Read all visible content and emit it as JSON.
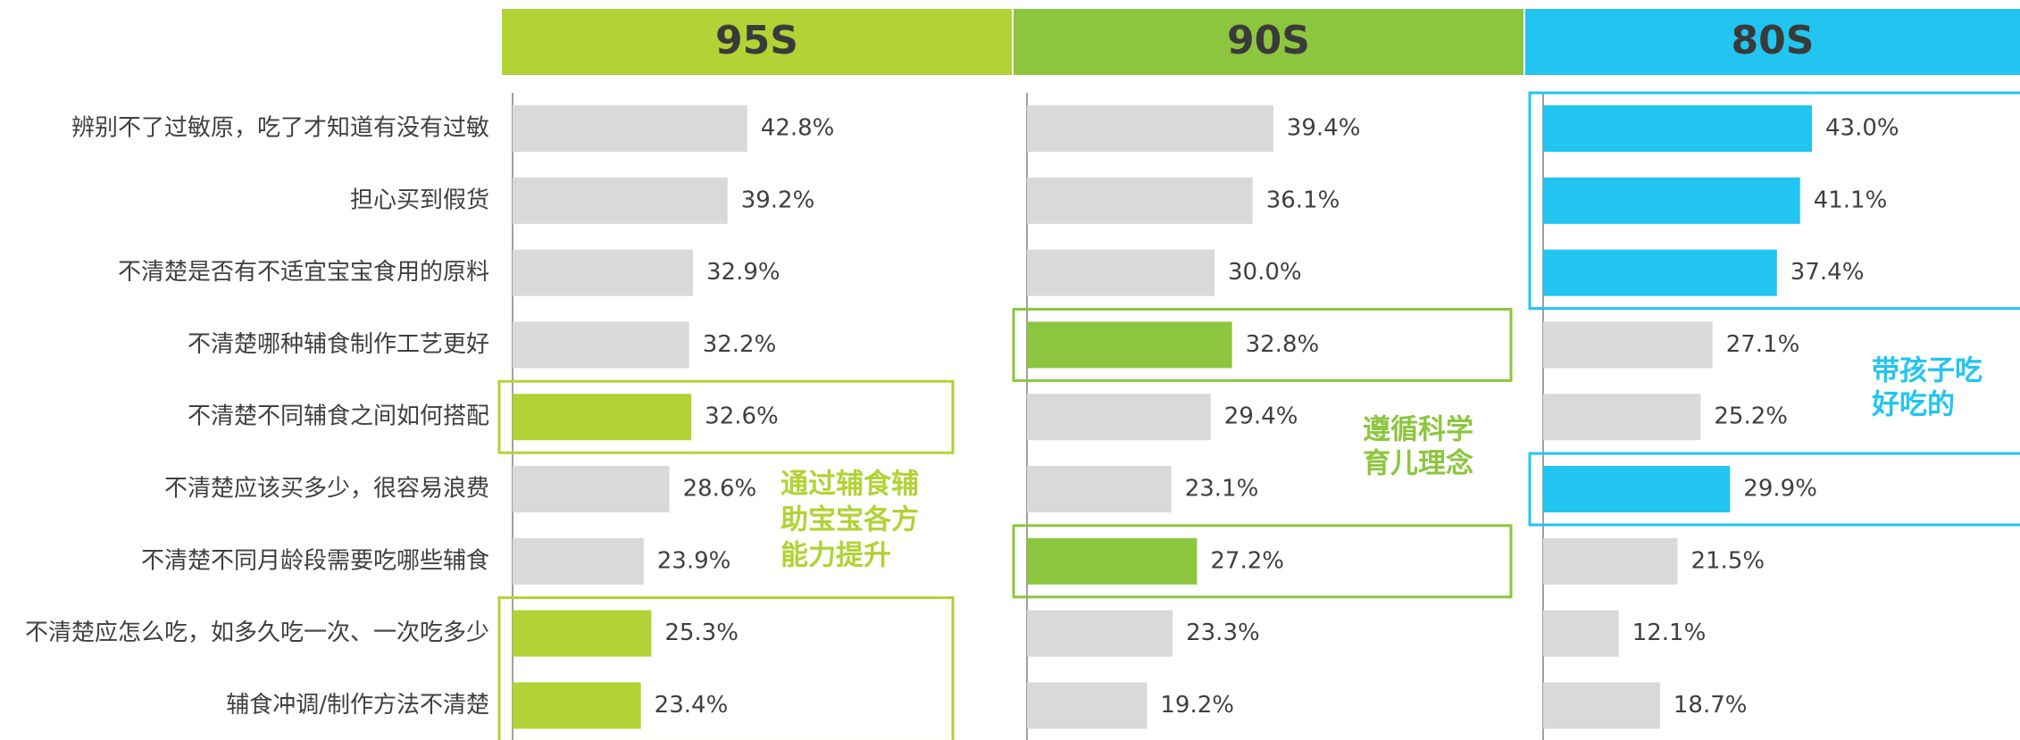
{
  "chart_data": {
    "type": "bar",
    "categories": [
      "辨别不了过敏原，吃了才知道有没有过敏",
      "担心买到假货",
      "不清楚是否有不适宜宝宝食用的原料",
      "不清楚哪种辅食制作工艺更好",
      "不清楚不同辅食之间如何搭配",
      "不清楚应该买多少，很容易浪费",
      "不清楚不同月龄段需要吃哪些辅食",
      "不清楚应怎么吃，如多久吃一次、一次吃多少",
      "辅食冲调/制作方法不清楚"
    ],
    "series": [
      {
        "name": "95S",
        "color": "#b2d235",
        "values": [
          42.8,
          39.2,
          32.9,
          32.2,
          32.6,
          28.6,
          23.9,
          25.3,
          23.4
        ],
        "value_labels": [
          "42.8%",
          "39.2%",
          "32.9%",
          "32.2%",
          "32.6%",
          "28.6%",
          "23.9%",
          "25.3%",
          "23.4%"
        ],
        "colors": [
          "#d9d9d9",
          "#d9d9d9",
          "#d9d9d9",
          "#d9d9d9",
          "#b2d235",
          "#d9d9d9",
          "#d9d9d9",
          "#b2d235",
          "#b2d235"
        ],
        "annotation": [
          "通过辅食辅",
          "助宝宝各方",
          "能力提升"
        ]
      },
      {
        "name": "90S",
        "color": "#8cc63f",
        "values": [
          39.4,
          36.1,
          30.0,
          32.8,
          29.4,
          23.1,
          27.2,
          23.3,
          19.2
        ],
        "value_labels": [
          "39.4%",
          "36.1%",
          "30.0%",
          "32.8%",
          "29.4%",
          "23.1%",
          "27.2%",
          "23.3%",
          "19.2%"
        ],
        "colors": [
          "#d9d9d9",
          "#d9d9d9",
          "#d9d9d9",
          "#8cc63f",
          "#d9d9d9",
          "#d9d9d9",
          "#8cc63f",
          "#d9d9d9",
          "#d9d9d9"
        ],
        "annotation": [
          "遵循科学",
          "育儿理念"
        ]
      },
      {
        "name": "80S",
        "color": "#21c5f0",
        "values": [
          43.0,
          41.1,
          37.4,
          27.1,
          25.2,
          29.9,
          21.5,
          12.1,
          18.7
        ],
        "value_labels": [
          "43.0%",
          "41.1%",
          "37.4%",
          "27.1%",
          "25.2%",
          "29.9%",
          "21.5%",
          "12.1%",
          "18.7%"
        ],
        "colors": [
          "#21c5f0",
          "#21c5f0",
          "#21c5f0",
          "#d9d9d9",
          "#d9d9d9",
          "#21c5f0",
          "#d9d9d9",
          "#d9d9d9",
          "#d9d9d9"
        ],
        "annotation": [
          "带孩子吃",
          "好吃的"
        ]
      }
    ]
  }
}
